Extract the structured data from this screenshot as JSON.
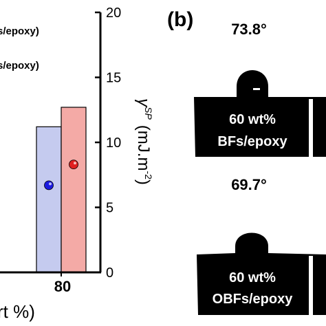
{
  "chart_data": {
    "type": "bar",
    "categories": [
      "80"
    ],
    "series": [
      {
        "name": "s/epoxy)",
        "values": [
          11.2
        ],
        "color": "#c5cbef",
        "marker_value": 6.7,
        "marker_color": "#1a1adf"
      },
      {
        "name": "s/epoxy)",
        "values": [
          12.7
        ],
        "color": "#f4aaa6",
        "marker_value": 8.3,
        "marker_color": "#e02020"
      }
    ],
    "xlabel": "rt %)",
    "ylabel_right_symbol": "γ",
    "ylabel_right_sup": "SP",
    "ylabel_right_unit": "(mJ.m",
    "ylabel_right_unit_sup": "-2",
    "ylabel_right_close": ")",
    "ylim": [
      0,
      20
    ],
    "yticks": [
      "0",
      "5",
      "10",
      "15",
      "20"
    ],
    "grid": false,
    "legend": "top-left"
  },
  "panel_b": {
    "label": "(b)",
    "top": {
      "angle": "73.8°",
      "line1": "60 wt%",
      "line2": "BFs/epoxy"
    },
    "bottom": {
      "angle": "69.7°",
      "line1": "60 wt%",
      "line2": "OBFs/epoxy"
    }
  }
}
